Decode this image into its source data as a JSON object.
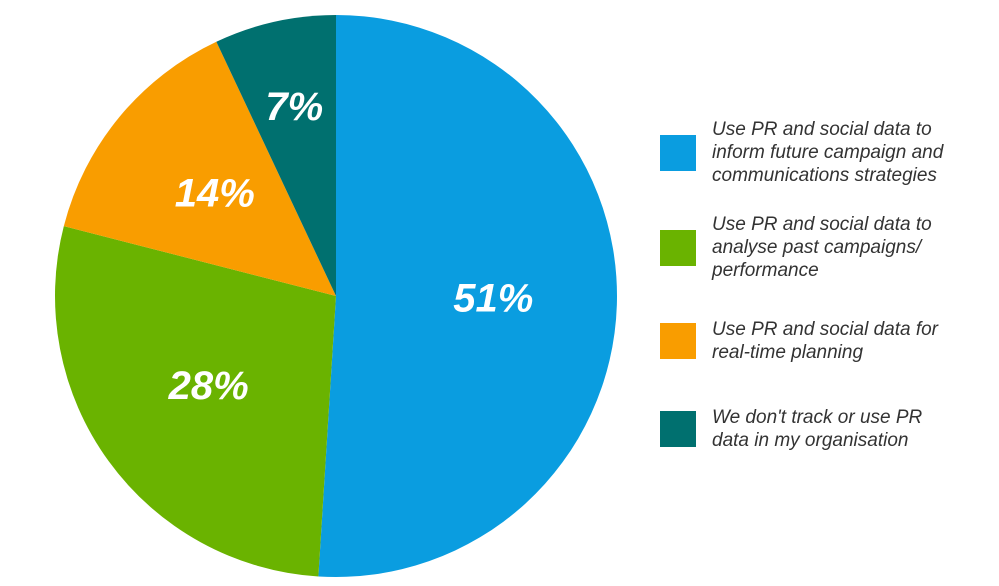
{
  "chart_data": {
    "type": "pie",
    "categories": [
      "Use PR and social data to inform future campaign and communications strategies",
      "Use PR and social data to analyse past campaigns/ performance",
      "Use PR and social data for real-time planning",
      "We don't track or use PR data in my organisation"
    ],
    "values": [
      51,
      28,
      14,
      7
    ],
    "value_labels": [
      "51%",
      "28%",
      "14%",
      "7%"
    ],
    "colors": [
      "#0a9de0",
      "#6ab300",
      "#f99d00",
      "#00706f"
    ],
    "legend": "right"
  }
}
